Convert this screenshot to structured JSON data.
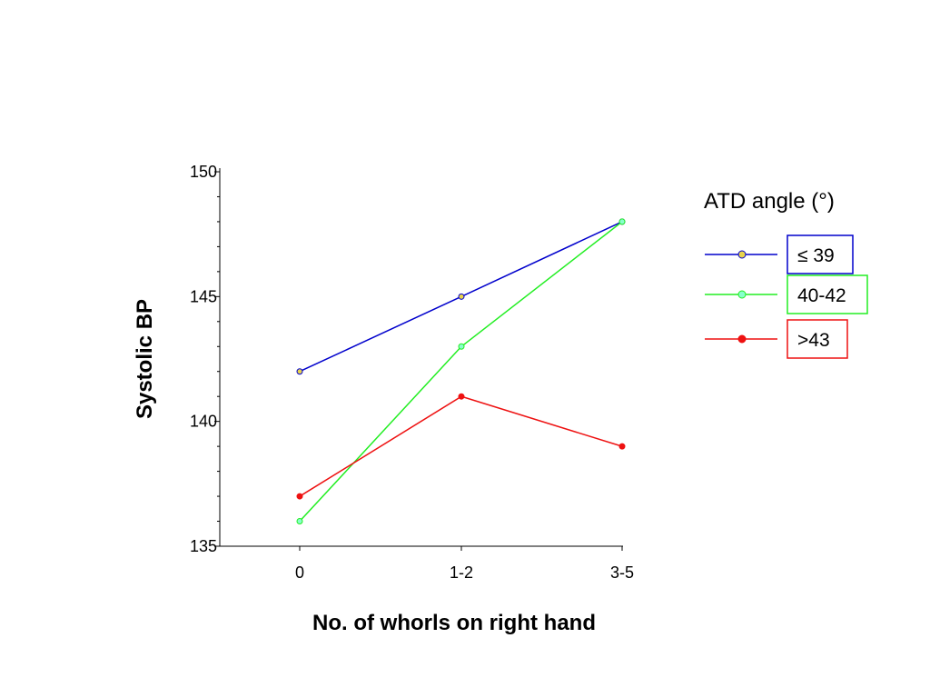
{
  "chart_data": {
    "type": "line",
    "categories": [
      "0",
      "1-2",
      "3-5"
    ],
    "xlabel": "No. of whorls on right hand",
    "ylabel": "Systolic BP",
    "ylim": [
      135,
      150
    ],
    "yticks": [
      "135",
      "140",
      "145",
      "150"
    ],
    "grid": false,
    "legend_title": "ATD angle (°)",
    "legend_position": "right",
    "series": [
      {
        "name": "≤ 39",
        "values": [
          142,
          145,
          148
        ],
        "color": "#0000cc",
        "marker_fill": "#e8d44d"
      },
      {
        "name": "40-42",
        "values": [
          136,
          143,
          148
        ],
        "color": "#22ee22",
        "marker_fill": "#88ffcc"
      },
      {
        "name": ">43",
        "values": [
          137,
          141,
          139
        ],
        "color": "#ee1111",
        "marker_fill": "#ee1111"
      }
    ]
  }
}
